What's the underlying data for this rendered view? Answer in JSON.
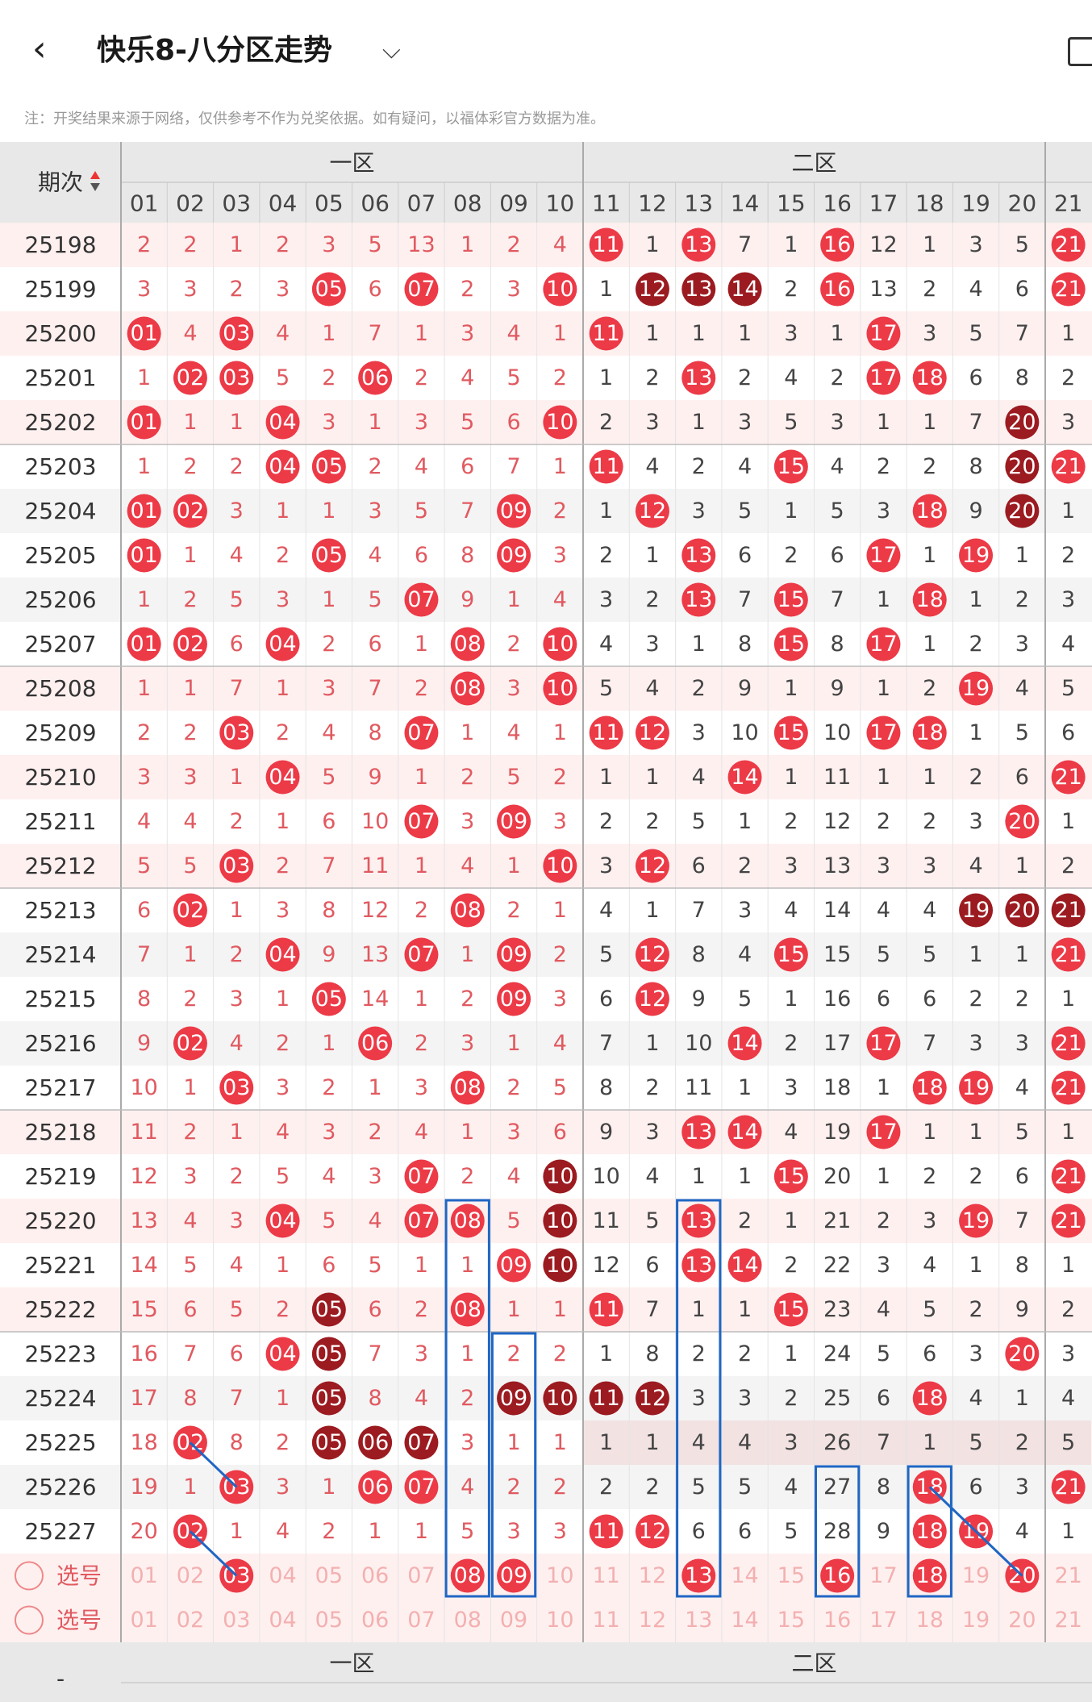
{
  "header": {
    "back_label": "‹",
    "title": "快乐8-八分区走势",
    "dropdown_icon": "chevron-down-icon",
    "share_icon": "share-icon"
  },
  "note": "注：开奖结果来源于网络，仅供参考不作为兑奖依据。如有疑问，以福体彩官方数据为准。",
  "colors": {
    "hit": "#ec3a47",
    "repeat": "#9b1b20",
    "miss_text": "#e05a60",
    "miss_text_dark": "#444444",
    "odd_row_bg": "#fff0f0",
    "header_bg": "#e8e8e8",
    "select_row_bg": "#fff0f0",
    "blue_box": "#1f66c4"
  },
  "table": {
    "period_header": "期次",
    "zone_labels": [
      "一区",
      "二区"
    ],
    "columns": [
      "01",
      "02",
      "03",
      "04",
      "05",
      "06",
      "07",
      "08",
      "09",
      "10",
      "11",
      "12",
      "13",
      "14",
      "15",
      "16",
      "17",
      "18",
      "19",
      "20",
      "21"
    ],
    "rows": [
      {
        "period": "25198",
        "cells": [
          "2",
          "2",
          "1",
          "2",
          "3",
          "5",
          "13",
          "1",
          "2",
          "4",
          "H11",
          "1",
          "H13",
          "7",
          "1",
          "H16",
          "12",
          "1",
          "3",
          "5",
          "H21"
        ]
      },
      {
        "period": "25199",
        "cells": [
          "3",
          "3",
          "2",
          "3",
          "H05",
          "6",
          "H07",
          "2",
          "3",
          "H10",
          "1",
          "R12",
          "R13",
          "R14",
          "2",
          "H16",
          "13",
          "2",
          "4",
          "6",
          "H21"
        ]
      },
      {
        "period": "25200",
        "cells": [
          "H01",
          "4",
          "H03",
          "4",
          "1",
          "7",
          "1",
          "3",
          "4",
          "1",
          "H11",
          "1",
          "1",
          "1",
          "3",
          "1",
          "H17",
          "3",
          "5",
          "7",
          "1"
        ]
      },
      {
        "period": "25201",
        "cells": [
          "1",
          "H02",
          "H03",
          "5",
          "2",
          "H06",
          "2",
          "4",
          "5",
          "2",
          "1",
          "2",
          "H13",
          "2",
          "4",
          "2",
          "H17",
          "H18",
          "6",
          "8",
          "2"
        ]
      },
      {
        "period": "25202",
        "cells": [
          "H01",
          "1",
          "1",
          "H04",
          "3",
          "1",
          "3",
          "5",
          "6",
          "H10",
          "2",
          "3",
          "1",
          "3",
          "5",
          "3",
          "1",
          "1",
          "7",
          "R20",
          "3"
        ]
      },
      {
        "period": "25203",
        "cells": [
          "1",
          "2",
          "2",
          "H04",
          "H05",
          "2",
          "4",
          "6",
          "7",
          "1",
          "H11",
          "4",
          "2",
          "4",
          "H15",
          "4",
          "2",
          "2",
          "8",
          "R20",
          "H21"
        ]
      },
      {
        "period": "25204",
        "cells": [
          "H01",
          "H02",
          "3",
          "1",
          "1",
          "3",
          "5",
          "7",
          "H09",
          "2",
          "1",
          "H12",
          "3",
          "5",
          "1",
          "5",
          "3",
          "H18",
          "9",
          "R20",
          "1"
        ]
      },
      {
        "period": "25205",
        "cells": [
          "H01",
          "1",
          "4",
          "2",
          "H05",
          "4",
          "6",
          "8",
          "H09",
          "3",
          "2",
          "1",
          "H13",
          "6",
          "2",
          "6",
          "H17",
          "1",
          "H19",
          "1",
          "2"
        ]
      },
      {
        "period": "25206",
        "cells": [
          "1",
          "2",
          "5",
          "3",
          "1",
          "5",
          "H07",
          "9",
          "1",
          "4",
          "3",
          "2",
          "H13",
          "7",
          "H15",
          "7",
          "1",
          "H18",
          "1",
          "2",
          "3"
        ]
      },
      {
        "period": "25207",
        "cells": [
          "H01",
          "H02",
          "6",
          "H04",
          "2",
          "6",
          "1",
          "H08",
          "2",
          "H10",
          "4",
          "3",
          "1",
          "8",
          "H15",
          "8",
          "H17",
          "1",
          "2",
          "3",
          "4"
        ]
      },
      {
        "period": "25208",
        "cells": [
          "1",
          "1",
          "7",
          "1",
          "3",
          "7",
          "2",
          "H08",
          "3",
          "H10",
          "5",
          "4",
          "2",
          "9",
          "1",
          "9",
          "1",
          "2",
          "H19",
          "4",
          "5"
        ]
      },
      {
        "period": "25209",
        "cells": [
          "2",
          "2",
          "H03",
          "2",
          "4",
          "8",
          "H07",
          "1",
          "4",
          "1",
          "H11",
          "H12",
          "3",
          "10",
          "H15",
          "10",
          "H17",
          "H18",
          "1",
          "5",
          "6"
        ]
      },
      {
        "period": "25210",
        "cells": [
          "3",
          "3",
          "1",
          "H04",
          "5",
          "9",
          "1",
          "2",
          "5",
          "2",
          "1",
          "1",
          "4",
          "H14",
          "1",
          "11",
          "1",
          "1",
          "2",
          "6",
          "H21"
        ]
      },
      {
        "period": "25211",
        "cells": [
          "4",
          "4",
          "2",
          "1",
          "6",
          "10",
          "H07",
          "3",
          "H09",
          "3",
          "2",
          "2",
          "5",
          "1",
          "2",
          "12",
          "2",
          "2",
          "3",
          "H20",
          "1"
        ]
      },
      {
        "period": "25212",
        "cells": [
          "5",
          "5",
          "H03",
          "2",
          "7",
          "11",
          "1",
          "4",
          "1",
          "H10",
          "3",
          "H12",
          "6",
          "2",
          "3",
          "13",
          "3",
          "3",
          "4",
          "1",
          "2"
        ]
      },
      {
        "period": "25213",
        "cells": [
          "6",
          "H02",
          "1",
          "3",
          "8",
          "12",
          "2",
          "H08",
          "2",
          "1",
          "4",
          "1",
          "7",
          "3",
          "4",
          "14",
          "4",
          "4",
          "R19",
          "R20",
          "R21"
        ]
      },
      {
        "period": "25214",
        "cells": [
          "7",
          "1",
          "2",
          "H04",
          "9",
          "13",
          "H07",
          "1",
          "H09",
          "2",
          "5",
          "H12",
          "8",
          "4",
          "H15",
          "15",
          "5",
          "5",
          "1",
          "1",
          "H21"
        ]
      },
      {
        "period": "25215",
        "cells": [
          "8",
          "2",
          "3",
          "1",
          "H05",
          "14",
          "1",
          "2",
          "H09",
          "3",
          "6",
          "H12",
          "9",
          "5",
          "1",
          "16",
          "6",
          "6",
          "2",
          "2",
          "1"
        ]
      },
      {
        "period": "25216",
        "cells": [
          "9",
          "H02",
          "4",
          "2",
          "1",
          "H06",
          "2",
          "3",
          "1",
          "4",
          "7",
          "1",
          "10",
          "H14",
          "2",
          "17",
          "H17",
          "7",
          "3",
          "3",
          "H21"
        ]
      },
      {
        "period": "25217",
        "cells": [
          "10",
          "1",
          "H03",
          "3",
          "2",
          "1",
          "3",
          "H08",
          "2",
          "5",
          "8",
          "2",
          "11",
          "1",
          "3",
          "18",
          "1",
          "H18",
          "H19",
          "4",
          "H21"
        ]
      },
      {
        "period": "25218",
        "cells": [
          "11",
          "2",
          "1",
          "4",
          "3",
          "2",
          "4",
          "1",
          "3",
          "6",
          "9",
          "3",
          "H13",
          "H14",
          "4",
          "19",
          "H17",
          "1",
          "1",
          "5",
          "1"
        ]
      },
      {
        "period": "25219",
        "cells": [
          "12",
          "3",
          "2",
          "5",
          "4",
          "3",
          "H07",
          "2",
          "4",
          "R10",
          "10",
          "4",
          "1",
          "1",
          "H15",
          "20",
          "1",
          "2",
          "2",
          "6",
          "H21"
        ]
      },
      {
        "period": "25220",
        "cells": [
          "13",
          "4",
          "3",
          "H04",
          "5",
          "4",
          "H07",
          "H08",
          "5",
          "R10",
          "11",
          "5",
          "H13",
          "2",
          "1",
          "21",
          "2",
          "3",
          "H19",
          "7",
          "H21"
        ]
      },
      {
        "period": "25221",
        "cells": [
          "14",
          "5",
          "4",
          "1",
          "6",
          "5",
          "1",
          "1",
          "H09",
          "R10",
          "12",
          "6",
          "H13",
          "H14",
          "2",
          "22",
          "3",
          "4",
          "1",
          "8",
          "1"
        ]
      },
      {
        "period": "25222",
        "cells": [
          "15",
          "6",
          "5",
          "2",
          "R05",
          "6",
          "2",
          "H08",
          "1",
          "1",
          "H11",
          "7",
          "1",
          "1",
          "H15",
          "23",
          "4",
          "5",
          "2",
          "9",
          "2"
        ]
      },
      {
        "period": "25223",
        "cells": [
          "16",
          "7",
          "6",
          "H04",
          "R05",
          "7",
          "3",
          "1",
          "2",
          "2",
          "1",
          "8",
          "2",
          "2",
          "1",
          "24",
          "5",
          "6",
          "3",
          "H20",
          "3"
        ]
      },
      {
        "period": "25224",
        "cells": [
          "17",
          "8",
          "7",
          "1",
          "R05",
          "8",
          "4",
          "2",
          "R09",
          "R10",
          "R11",
          "R12",
          "3",
          "3",
          "2",
          "25",
          "6",
          "H18",
          "4",
          "1",
          "4"
        ]
      },
      {
        "period": "25225",
        "cells": [
          "18",
          "H02",
          "8",
          "2",
          "R05",
          "R06",
          "R07",
          "3",
          "1",
          "1",
          "1",
          "1",
          "4",
          "4",
          "3",
          "26",
          "7",
          "1",
          "5",
          "2",
          "5"
        ]
      },
      {
        "period": "25226",
        "cells": [
          "19",
          "1",
          "H03",
          "3",
          "1",
          "H06",
          "H07",
          "4",
          "2",
          "2",
          "2",
          "2",
          "5",
          "5",
          "4",
          "27",
          "8",
          "H18",
          "6",
          "3",
          "H21"
        ]
      },
      {
        "period": "25227",
        "cells": [
          "20",
          "H02",
          "1",
          "4",
          "2",
          "1",
          "1",
          "5",
          "3",
          "3",
          "H11",
          "H12",
          "6",
          "6",
          "5",
          "28",
          "9",
          "H18",
          "H19",
          "4",
          "1"
        ]
      }
    ],
    "select_rows": [
      {
        "label": "选号",
        "cells": [
          "01",
          "02",
          "H03",
          "04",
          "05",
          "06",
          "07",
          "H08",
          "H09",
          "10",
          "11",
          "12",
          "H13",
          "14",
          "15",
          "H16",
          "17",
          "H18",
          "19",
          "H20",
          "21"
        ]
      },
      {
        "label": "选号",
        "cells": [
          "01",
          "02",
          "03",
          "04",
          "05",
          "06",
          "07",
          "08",
          "09",
          "10",
          "11",
          "12",
          "13",
          "14",
          "15",
          "16",
          "17",
          "18",
          "19",
          "20",
          "21"
        ]
      }
    ],
    "footer_dash": "-"
  }
}
